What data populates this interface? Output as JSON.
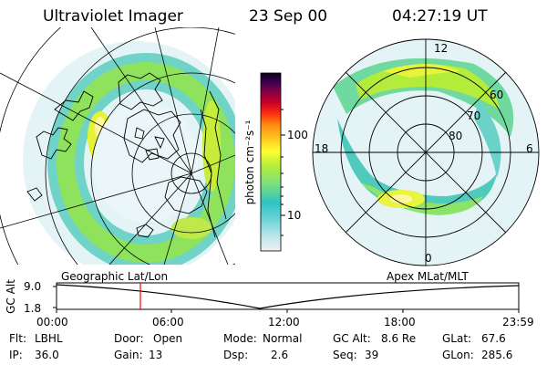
{
  "header": {
    "instrument": "Ultraviolet Imager",
    "date": "23 Sep 00",
    "time": "04:27:19 UT"
  },
  "left_panel": {
    "label": "Geographic Lat/Lon"
  },
  "right_panel": {
    "label": "Apex MLat/MLT",
    "mlt_labels": [
      "12",
      "18",
      "6",
      "0"
    ],
    "lat_labels": [
      "60",
      "70",
      "80"
    ]
  },
  "colorbar": {
    "unit_label": "photon cm⁻²s⁻¹",
    "ticks": [
      "100",
      "10"
    ],
    "scale": "log",
    "colors": [
      "#f0f0f0",
      "#bfe6ea",
      "#6ad2d8",
      "#2fc3c3",
      "#7ee07a",
      "#b6ee3a",
      "#ffff30",
      "#ffc020",
      "#ff8a10",
      "#ff3010",
      "#cc0024",
      "#8a0044",
      "#3a0052",
      "#0a0010"
    ]
  },
  "timeline": {
    "ylabel": "GC Alt",
    "y_ticks": [
      "9.0",
      "1.8"
    ],
    "x_ticks": [
      "00:00",
      "06:00",
      "12:00",
      "18:00",
      "23:59"
    ],
    "marker_color": "#ff0000"
  },
  "info": {
    "flt_label": "Flt:",
    "flt": "LBHL",
    "ip_label": "IP:",
    "ip": "36.0",
    "door_label": "Door:",
    "door": "Open",
    "gain_label": "Gain:",
    "gain": "13",
    "mode_label": "Mode:",
    "mode": "Normal",
    "dsp_label": "Dsp:",
    "dsp": "2.6",
    "gcalt_label": "GC Alt:",
    "gcalt": "8.6 Re",
    "seq_label": "Seq:",
    "seq": "39",
    "glat_label": "GLat:",
    "glat": "67.6",
    "glon_label": "GLon:",
    "glon": "285.6"
  }
}
